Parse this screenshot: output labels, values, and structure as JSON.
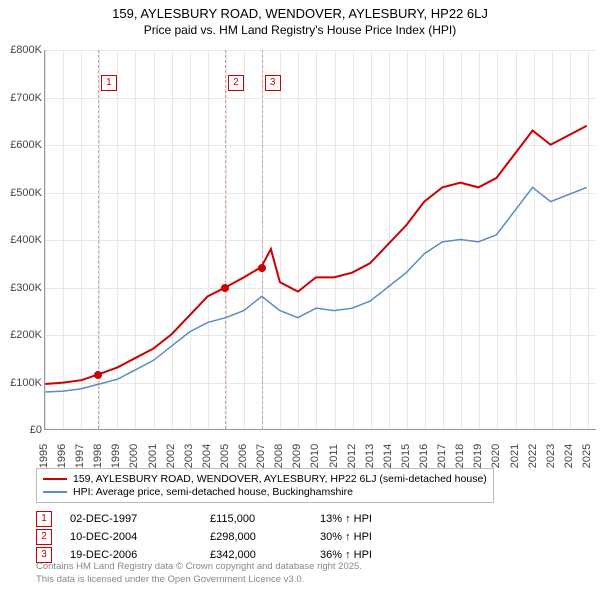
{
  "title_line1": "159, AYLESBURY ROAD, WENDOVER, AYLESBURY, HP22 6LJ",
  "title_line2": "Price paid vs. HM Land Registry's House Price Index (HPI)",
  "chart": {
    "type": "line",
    "background_color": "#ffffff",
    "grid_color": "#e8e8e8",
    "axis_color": "#999999",
    "x_years": [
      1995,
      1996,
      1997,
      1998,
      1999,
      2000,
      2001,
      2002,
      2003,
      2004,
      2005,
      2006,
      2007,
      2008,
      2009,
      2010,
      2011,
      2012,
      2013,
      2014,
      2015,
      2016,
      2017,
      2018,
      2019,
      2020,
      2021,
      2022,
      2023,
      2024,
      2025
    ],
    "xlim": [
      1995,
      2025.5
    ],
    "ylim": [
      0,
      800000
    ],
    "ytick_step": 100000,
    "ytick_labels": [
      "£0",
      "£100K",
      "£200K",
      "£300K",
      "£400K",
      "£500K",
      "£600K",
      "£700K",
      "£800K"
    ],
    "marker_dash_color": "#d0a0a0",
    "marker_box_border": "#cc0000",
    "marker_box_text_color": "#cc0000",
    "series": [
      {
        "name": "property",
        "color": "#cc0000",
        "line_width": 2,
        "points": [
          [
            1995,
            95000
          ],
          [
            1996,
            98000
          ],
          [
            1997,
            103000
          ],
          [
            1997.92,
            115000
          ],
          [
            1999,
            130000
          ],
          [
            2000,
            150000
          ],
          [
            2001,
            170000
          ],
          [
            2002,
            200000
          ],
          [
            2003,
            240000
          ],
          [
            2004,
            280000
          ],
          [
            2004.94,
            298000
          ],
          [
            2006,
            320000
          ],
          [
            2006.97,
            342000
          ],
          [
            2007.5,
            380000
          ],
          [
            2008,
            310000
          ],
          [
            2009,
            290000
          ],
          [
            2010,
            320000
          ],
          [
            2011,
            320000
          ],
          [
            2012,
            330000
          ],
          [
            2013,
            350000
          ],
          [
            2014,
            390000
          ],
          [
            2015,
            430000
          ],
          [
            2016,
            480000
          ],
          [
            2017,
            510000
          ],
          [
            2018,
            520000
          ],
          [
            2019,
            510000
          ],
          [
            2020,
            530000
          ],
          [
            2021,
            580000
          ],
          [
            2022,
            630000
          ],
          [
            2023,
            600000
          ],
          [
            2024,
            620000
          ],
          [
            2025,
            640000
          ]
        ],
        "sale_points": [
          [
            1997.92,
            115000
          ],
          [
            2004.94,
            298000
          ],
          [
            2006.97,
            342000
          ]
        ]
      },
      {
        "name": "hpi",
        "color": "#5b8cc4",
        "line_width": 1.5,
        "points": [
          [
            1995,
            78000
          ],
          [
            1996,
            80000
          ],
          [
            1997,
            85000
          ],
          [
            1998,
            95000
          ],
          [
            1999,
            105000
          ],
          [
            2000,
            125000
          ],
          [
            2001,
            145000
          ],
          [
            2002,
            175000
          ],
          [
            2003,
            205000
          ],
          [
            2004,
            225000
          ],
          [
            2005,
            235000
          ],
          [
            2006,
            250000
          ],
          [
            2007,
            280000
          ],
          [
            2008,
            250000
          ],
          [
            2009,
            235000
          ],
          [
            2010,
            255000
          ],
          [
            2011,
            250000
          ],
          [
            2012,
            255000
          ],
          [
            2013,
            270000
          ],
          [
            2014,
            300000
          ],
          [
            2015,
            330000
          ],
          [
            2016,
            370000
          ],
          [
            2017,
            395000
          ],
          [
            2018,
            400000
          ],
          [
            2019,
            395000
          ],
          [
            2020,
            410000
          ],
          [
            2021,
            460000
          ],
          [
            2022,
            510000
          ],
          [
            2023,
            480000
          ],
          [
            2024,
            495000
          ],
          [
            2025,
            510000
          ]
        ]
      }
    ],
    "markers": [
      {
        "n": "1",
        "x": 1997.92,
        "box_top": 75
      },
      {
        "n": "2",
        "x": 2004.94,
        "box_top": 75
      },
      {
        "n": "3",
        "x": 2006.97,
        "box_top": 75
      }
    ],
    "label_fontsize": 11,
    "title_fontsize": 13
  },
  "legend": {
    "items": [
      {
        "color": "#cc0000",
        "label": "159, AYLESBURY ROAD, WENDOVER, AYLESBURY, HP22 6LJ (semi-detached house)"
      },
      {
        "color": "#5b8cc4",
        "label": "HPI: Average price, semi-detached house, Buckinghamshire"
      }
    ]
  },
  "table": {
    "rows": [
      {
        "n": "1",
        "date": "02-DEC-1997",
        "price": "£115,000",
        "hpi": "13% ↑ HPI"
      },
      {
        "n": "2",
        "date": "10-DEC-2004",
        "price": "£298,000",
        "hpi": "30% ↑ HPI"
      },
      {
        "n": "3",
        "date": "19-DEC-2006",
        "price": "£342,000",
        "hpi": "36% ↑ HPI"
      }
    ]
  },
  "footer_line1": "Contains HM Land Registry data © Crown copyright and database right 2025.",
  "footer_line2": "This data is licensed under the Open Government Licence v3.0."
}
